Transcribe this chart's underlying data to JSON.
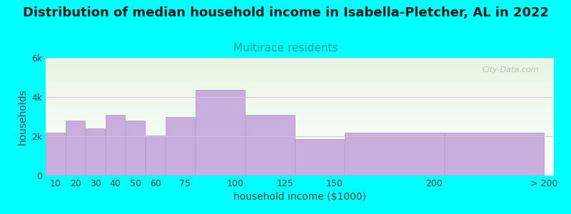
{
  "title": "Distribution of median household income in Isabella-Pletcher, AL in 2022",
  "subtitle": "Multirace residents",
  "xlabel": "household income ($1000)",
  "ylabel": "households",
  "background_color": "#00FFFF",
  "plot_bg_top": "#e8f5e2",
  "plot_bg_bottom": "#ffffff",
  "bar_color": "#c8aedd",
  "bar_edge_color": "#b090c8",
  "bar_values": [
    2200,
    2800,
    2400,
    3100,
    2800,
    2050,
    3000,
    4350,
    3100,
    1850,
    2200,
    2200
  ],
  "bar_widths": [
    10,
    10,
    10,
    10,
    10,
    10,
    15,
    25,
    25,
    25,
    50,
    50
  ],
  "bar_lefts": [
    5,
    15,
    25,
    35,
    45,
    55,
    65,
    80,
    105,
    130,
    155,
    205
  ],
  "xlim_left": 5,
  "xlim_right": 260,
  "ylim": [
    0,
    6000
  ],
  "ytick_labels": [
    "0",
    "2k",
    "4k",
    "6k"
  ],
  "ytick_values": [
    0,
    2000,
    4000,
    6000
  ],
  "xtick_positions": [
    10,
    20,
    30,
    40,
    50,
    60,
    75,
    100,
    125,
    150,
    200,
    255
  ],
  "xtick_labels": [
    "10",
    "20",
    "30",
    "40",
    "50",
    "60",
    "75",
    "100",
    "125",
    "150",
    "200",
    "> 200"
  ],
  "title_fontsize": 13,
  "subtitle_fontsize": 11,
  "axis_label_fontsize": 10,
  "tick_fontsize": 9,
  "watermark_text": "City-Data.com"
}
